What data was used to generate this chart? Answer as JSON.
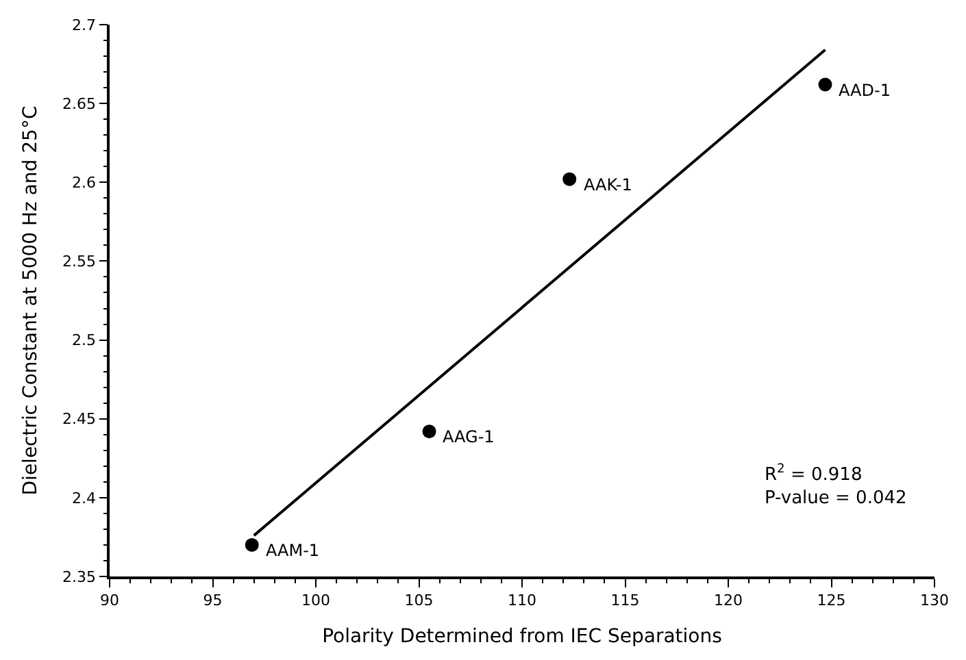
{
  "chart_data": {
    "type": "scatter",
    "xlabel": "Polarity Determined from IEC Separations",
    "ylabel": "Dielectric Constant at 5000 Hz and 25°C",
    "x": [
      96.9,
      105.5,
      112.3,
      124.7
    ],
    "series": [
      {
        "color": "#000000",
        "marker": "circle",
        "values": [
          2.37,
          2.442,
          2.602,
          2.662
        ]
      },
      {
        "type": "line",
        "color": "#000000",
        "marker": "none",
        "line_style": "solid",
        "x": [
          97.0,
          124.7
        ],
        "values": [
          2.376,
          2.684
        ]
      }
    ],
    "annotations": [
      {
        "text": "AAM-1",
        "x": 96.9,
        "y": 2.37
      },
      {
        "text": "AAG-1",
        "x": 105.5,
        "y": 2.442
      },
      {
        "text": "AAK-1",
        "x": 112.3,
        "y": 2.602
      },
      {
        "text": "AAD-1",
        "x": 124.7,
        "y": 2.662
      },
      "R$^{2}$ = 0.918\nP-value = 0.042"
    ],
    "xlim": [
      90,
      130
    ],
    "xticks": [
      90,
      95,
      100,
      105,
      110,
      115,
      120,
      125,
      130
    ],
    "ylim": [
      2.35,
      2.7
    ],
    "yticks": [
      2.35,
      2.4,
      2.45,
      2.5,
      2.55,
      2.6,
      2.65,
      2.7
    ]
  }
}
